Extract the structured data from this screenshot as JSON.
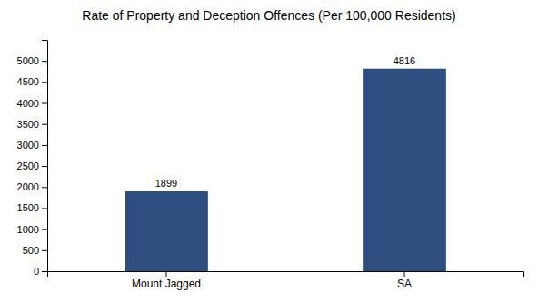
{
  "chart_data": {
    "type": "bar",
    "title": "Rate of Property and Deception Offences (Per 100,000 Residents)",
    "categories": [
      "Mount Jagged",
      "SA"
    ],
    "values": [
      1899,
      4816
    ],
    "color": "#2d4e7e",
    "ylim": [
      0,
      5500
    ],
    "yticks": [
      0,
      500,
      1000,
      1500,
      2000,
      2500,
      3000,
      3500,
      4000,
      4500,
      5000
    ],
    "grid": false,
    "data_labels": true
  }
}
